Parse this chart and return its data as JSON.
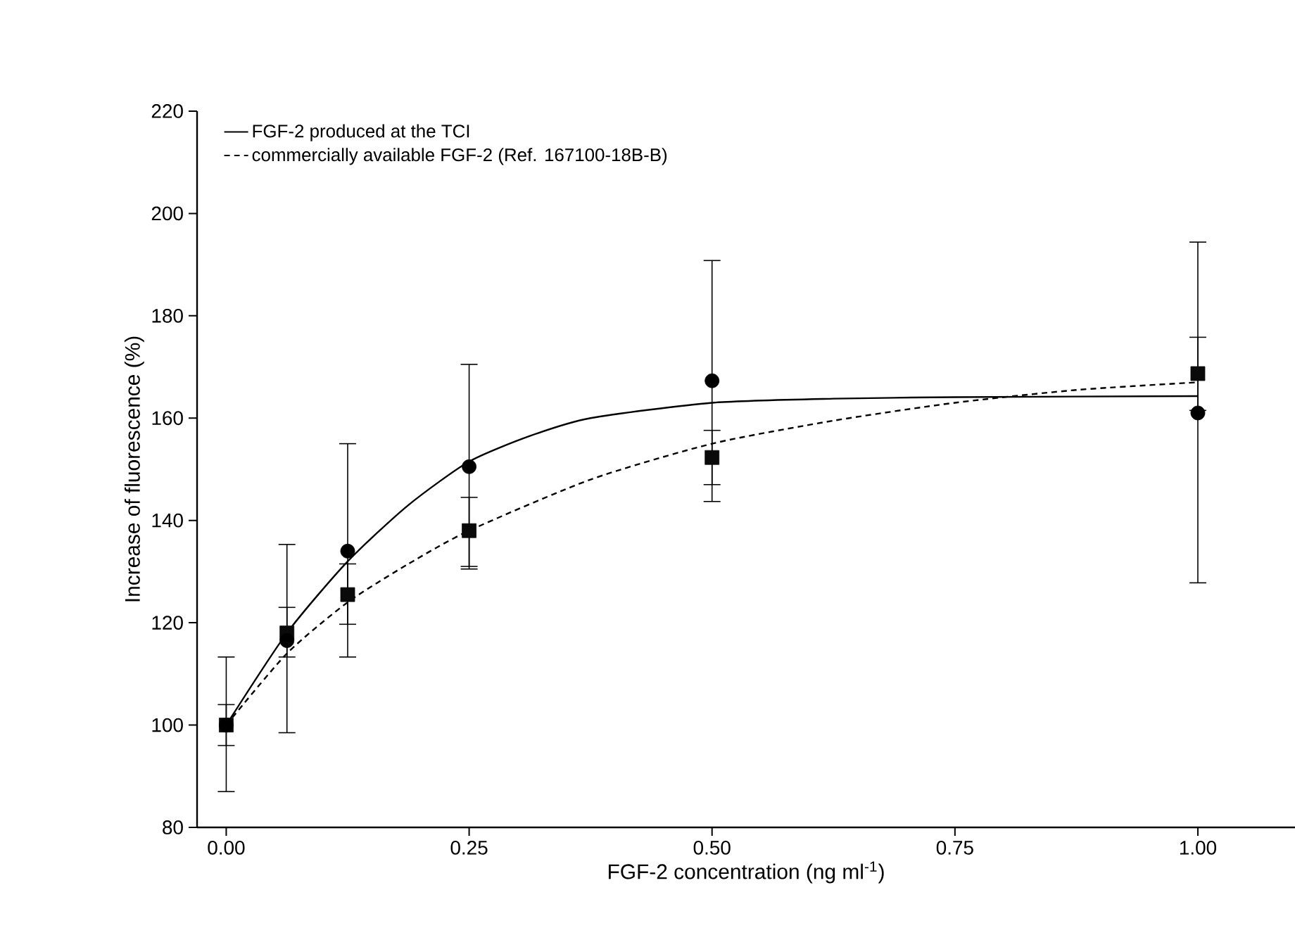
{
  "chart_data": {
    "type": "scatter",
    "xlabel": "FGF-2 concentration (ng ml$^{-1}$)",
    "ylabel": "Increase of fluorescence (%)",
    "xlim": [
      -0.03,
      1.1
    ],
    "ylim": [
      80,
      220
    ],
    "xticks": [
      {
        "value": 0,
        "label": "0.00"
      },
      {
        "value": 0.25,
        "label": "0.25"
      },
      {
        "value": 0.5,
        "label": "0.50"
      },
      {
        "value": 0.75,
        "label": "0.75"
      },
      {
        "value": 1,
        "label": "1.00"
      }
    ],
    "yticks": [
      80,
      100,
      120,
      140,
      160,
      180,
      200,
      220
    ],
    "grid": false,
    "legend": "top left",
    "series": [
      {
        "marker": "square",
        "color": "#0a0a0a",
        "x": [
          0,
          0.0625,
          0.125,
          0.25,
          0.5,
          1
        ],
        "values": [
          100,
          118,
          125.5,
          138,
          152.3,
          168.7
        ],
        "errors": [
          [
            96,
            104
          ],
          [
            113.3,
            123
          ],
          [
            119.7,
            131.5
          ],
          [
            131,
            144.5
          ],
          [
            147,
            157.6
          ],
          [
            161.5,
            175.8
          ]
        ]
      },
      {
        "marker": "circle",
        "color": "#000000",
        "x": [
          0,
          0.0625,
          0.125,
          0.25,
          0.5,
          1
        ],
        "values": [
          100,
          116.5,
          134,
          150.5,
          167.3,
          161
        ],
        "errors": [
          [
            87,
            113.3
          ],
          [
            98.5,
            135.3
          ],
          [
            113.3,
            155
          ],
          [
            130.5,
            170.5
          ],
          [
            143.7,
            190.8
          ],
          [
            127.8,
            194.4
          ]
        ]
      },
      {
        "type": "line",
        "name": "FGF-2 produced at the TCI",
        "line_style": "solid",
        "color": "#000000",
        "x": [
          0,
          0.0625,
          0.125,
          0.1875,
          0.25,
          0.3125,
          0.375,
          0.5,
          0.625,
          0.75,
          1
        ],
        "values": [
          100,
          118,
          132,
          143,
          151.5,
          156.5,
          160,
          163,
          163.8,
          164.1,
          164.3
        ]
      },
      {
        "type": "line",
        "name": "commercially available FGF-2 (Ref. 167100-18B-B)",
        "line_style": "dashed",
        "color": "#000000",
        "x": [
          0,
          0.0625,
          0.125,
          0.1875,
          0.25,
          0.375,
          0.5,
          0.625,
          0.75,
          0.875,
          1
        ],
        "values": [
          100,
          114,
          124,
          131.5,
          138,
          148,
          155,
          159.5,
          163,
          165.5,
          167
        ]
      }
    ]
  }
}
